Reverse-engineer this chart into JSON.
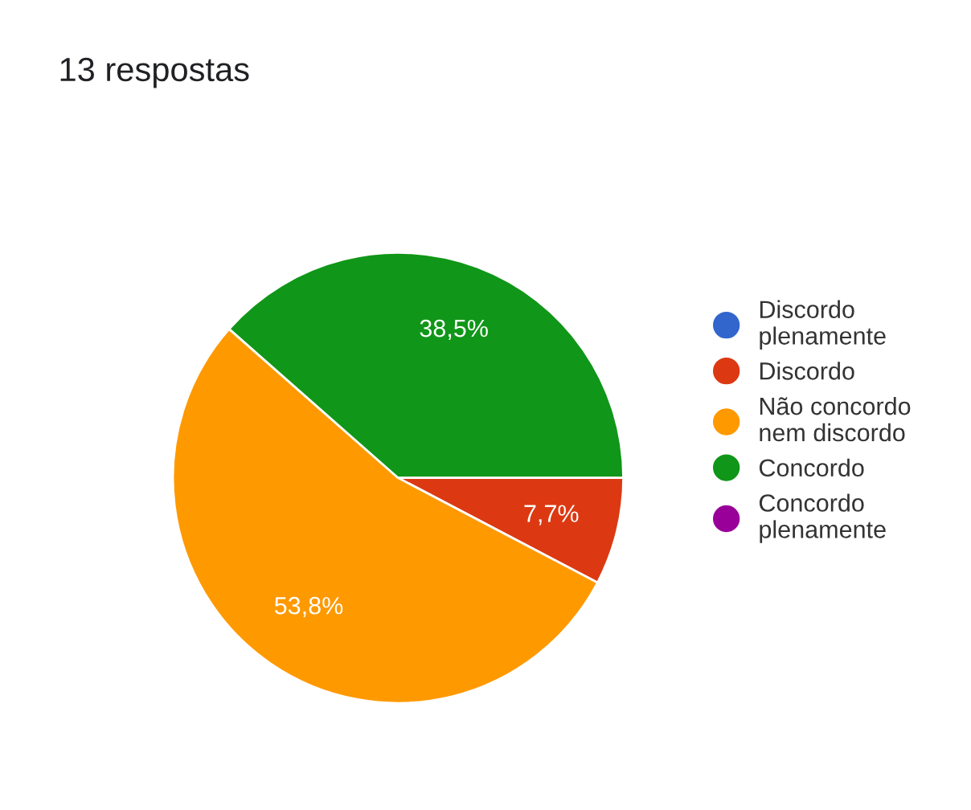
{
  "chart_data": {
    "type": "pie",
    "title": "13 respostas",
    "categories": [
      "Discordo plenamente",
      "Discordo",
      "Não concordo nem discordo",
      "Concordo",
      "Concordo plenamente"
    ],
    "values": [
      0,
      7.7,
      53.8,
      38.5,
      0
    ],
    "value_labels": [
      null,
      "7,7%",
      "53,8%",
      "38,5%",
      null
    ],
    "colors": [
      "#3366cc",
      "#dc3912",
      "#ff9900",
      "#109618",
      "#990099"
    ],
    "legend": "right"
  }
}
